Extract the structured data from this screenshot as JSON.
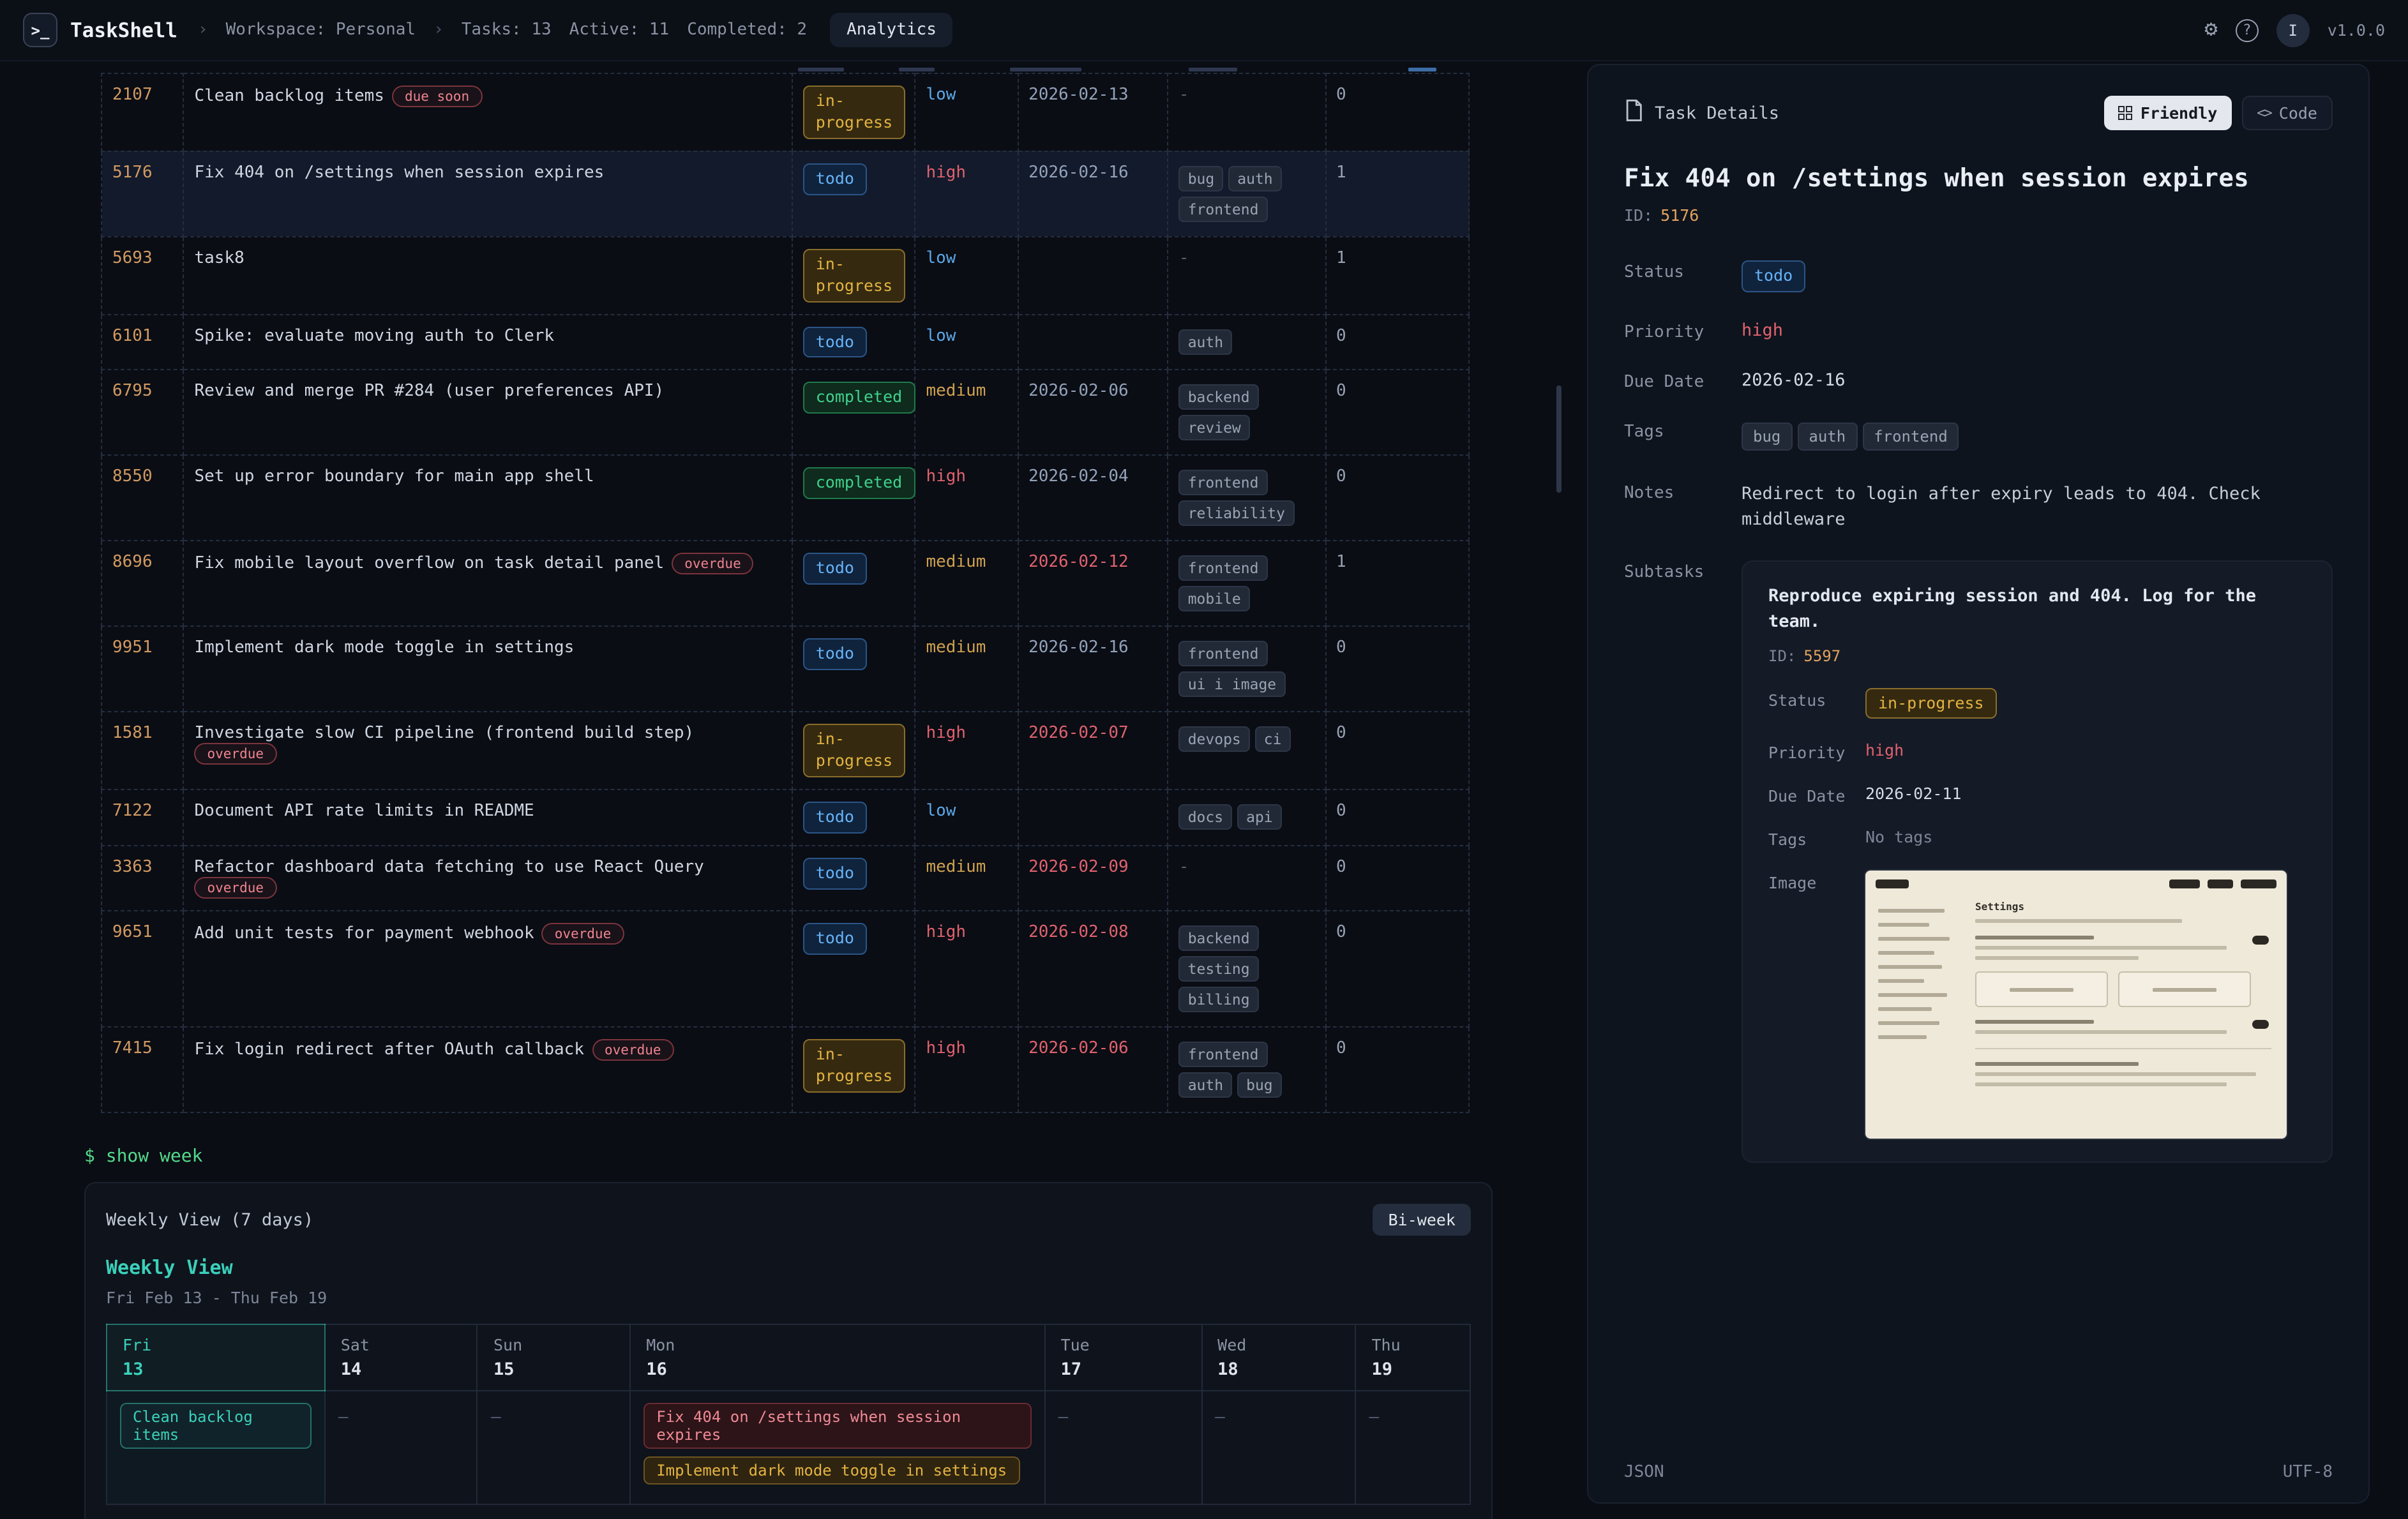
{
  "topbar": {
    "app_name": "TaskShell",
    "logo_glyph": ">_",
    "crumb_sep": "›",
    "crumbs": [
      {
        "sep": true,
        "label": "Workspace: Personal"
      },
      {
        "sep": true,
        "label": "Tasks: 13"
      },
      {
        "sep": false,
        "label": "Active: 11"
      },
      {
        "sep": false,
        "label": "Completed: 2"
      }
    ],
    "analytics_label": "Analytics",
    "icons": {
      "gear": "⚙",
      "help": "?"
    },
    "avatar_initial": "I",
    "version": "v1.0.0"
  },
  "table": {
    "no_tags_marker": "-",
    "rows": [
      {
        "id": "2107",
        "title": "Clean backlog items",
        "badge": "due soon",
        "status": "in-progress",
        "priority": "low",
        "due": "2026-02-13",
        "overdue": false,
        "tags": [],
        "subtasks": "0",
        "selected": false
      },
      {
        "id": "5176",
        "title": "Fix 404 on /settings when session expires",
        "badge": null,
        "status": "todo",
        "priority": "high",
        "due": "2026-02-16",
        "overdue": false,
        "tags": [
          "bug",
          "auth",
          "frontend"
        ],
        "subtasks": "1",
        "selected": true
      },
      {
        "id": "5693",
        "title": "task8",
        "badge": null,
        "status": "in-progress",
        "priority": "low",
        "due": "",
        "overdue": false,
        "tags": [],
        "subtasks": "1",
        "selected": false
      },
      {
        "id": "6101",
        "title": "Spike: evaluate moving auth to Clerk",
        "badge": null,
        "status": "todo",
        "priority": "low",
        "due": "",
        "overdue": false,
        "tags": [
          "auth"
        ],
        "subtasks": "0",
        "selected": false
      },
      {
        "id": "6795",
        "title": "Review and merge PR #284 (user preferences API)",
        "badge": null,
        "status": "completed",
        "priority": "medium",
        "due": "2026-02-06",
        "overdue": false,
        "tags": [
          "backend",
          "review"
        ],
        "subtasks": "0",
        "selected": false
      },
      {
        "id": "8550",
        "title": "Set up error boundary for main app shell",
        "badge": null,
        "status": "completed",
        "priority": "high",
        "due": "2026-02-04",
        "overdue": false,
        "tags": [
          "frontend",
          "reliability"
        ],
        "subtasks": "0",
        "selected": false
      },
      {
        "id": "8696",
        "title": "Fix mobile layout overflow on task detail panel",
        "badge": "overdue",
        "status": "todo",
        "priority": "medium",
        "due": "2026-02-12",
        "overdue": true,
        "tags": [
          "frontend",
          "mobile"
        ],
        "subtasks": "1",
        "selected": false
      },
      {
        "id": "9951",
        "title": "Implement dark mode toggle in settings",
        "badge": null,
        "status": "todo",
        "priority": "medium",
        "due": "2026-02-16",
        "overdue": false,
        "tags": [
          "frontend",
          "ui i image"
        ],
        "subtasks": "0",
        "selected": false
      },
      {
        "id": "1581",
        "title": "Investigate slow CI pipeline (frontend build step)",
        "badge": "overdue",
        "status": "in-progress",
        "priority": "high",
        "due": "2026-02-07",
        "overdue": true,
        "tags": [
          "devops",
          "ci"
        ],
        "subtasks": "0",
        "selected": false
      },
      {
        "id": "7122",
        "title": "Document API rate limits in README",
        "badge": null,
        "status": "todo",
        "priority": "low",
        "due": "",
        "overdue": false,
        "tags": [
          "docs",
          "api"
        ],
        "subtasks": "0",
        "selected": false
      },
      {
        "id": "3363",
        "title": "Refactor dashboard data fetching to use React Query",
        "badge": "overdue",
        "status": "todo",
        "priority": "medium",
        "due": "2026-02-09",
        "overdue": true,
        "tags": [],
        "subtasks": "0",
        "selected": false
      },
      {
        "id": "9651",
        "title": "Add unit tests for payment webhook",
        "badge": "overdue",
        "status": "todo",
        "priority": "high",
        "due": "2026-02-08",
        "overdue": true,
        "tags": [
          "backend",
          "testing",
          "billing"
        ],
        "subtasks": "0",
        "selected": false
      },
      {
        "id": "7415",
        "title": "Fix login redirect after OAuth callback",
        "badge": "overdue",
        "status": "in-progress",
        "priority": "high",
        "due": "2026-02-06",
        "overdue": true,
        "tags": [
          "frontend",
          "auth",
          "bug"
        ],
        "subtasks": "0",
        "selected": false
      }
    ]
  },
  "terminal": {
    "prompt_show_week": "$ show week",
    "prompt_empty": "$"
  },
  "week": {
    "panel_title": "Weekly View (7 days)",
    "button": "Bi-week",
    "heading": "Weekly View",
    "range": "Fri Feb 13 - Thu Feb 19",
    "empty_marker": "–",
    "days": [
      {
        "name": "Fri",
        "date": "13",
        "active": true,
        "events": [
          {
            "label": "Clean backlog items",
            "tone": "teal"
          }
        ]
      },
      {
        "name": "Sat",
        "date": "14",
        "active": false,
        "events": []
      },
      {
        "name": "Sun",
        "date": "15",
        "active": false,
        "events": []
      },
      {
        "name": "Mon",
        "date": "16",
        "active": false,
        "events": [
          {
            "label": "Fix 404 on /settings when session expires",
            "tone": "red"
          },
          {
            "label": "Implement dark mode toggle in settings",
            "tone": "amber"
          }
        ]
      },
      {
        "name": "Tue",
        "date": "17",
        "active": false,
        "events": []
      },
      {
        "name": "Wed",
        "date": "18",
        "active": false,
        "events": []
      },
      {
        "name": "Thu",
        "date": "19",
        "active": false,
        "events": []
      }
    ]
  },
  "details": {
    "header": "Task Details",
    "view_friendly": "Friendly",
    "view_code": "Code",
    "code_icon_glyph": "<>",
    "title": "Fix 404 on /settings when session expires",
    "id_label": "ID:",
    "id": "5176",
    "fields": {
      "status_label": "Status",
      "status": "todo",
      "priority_label": "Priority",
      "priority": "high",
      "due_label": "Due Date",
      "due": "2026-02-16",
      "tags_label": "Tags",
      "tags": [
        "bug",
        "auth",
        "frontend"
      ],
      "notes_label": "Notes",
      "notes": "Redirect to login after expiry leads to 404. Check middleware",
      "subtasks_label": "Subtasks"
    },
    "subtask": {
      "title": "Reproduce expiring session and 404. Log for the team.",
      "id_label": "ID:",
      "id": "5597",
      "status_label": "Status",
      "status": "in-progress",
      "priority_label": "Priority",
      "priority": "high",
      "due_label": "Due Date",
      "due": "2026-02-11",
      "tags_label": "Tags",
      "tags_empty": "No tags",
      "image_label": "Image",
      "thumb_heading": "Settings"
    },
    "footer_left": "JSON",
    "footer_right": "UTF-8"
  },
  "colors": {
    "accent_teal": "#3bd0ba",
    "status_todo": "#66b3f8",
    "status_in_progress": "#e3b341",
    "status_completed": "#41d18d",
    "priority_low": "#5ca8e8",
    "priority_medium": "#cfa14f",
    "priority_high": "#e0626e",
    "id_amber": "#e2a35e",
    "terminal_green": "#53d98b",
    "overdue_red": "#ef8490"
  }
}
